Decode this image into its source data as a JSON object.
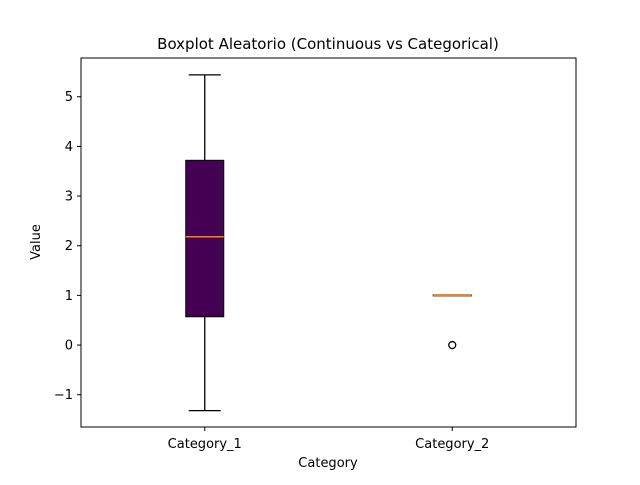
{
  "chart_data": {
    "type": "boxplot",
    "title": "Boxplot Aleatorio (Continuous vs Categorical)",
    "xlabel": "Category",
    "ylabel": "Value",
    "ylim": [
      -1.65,
      5.78
    ],
    "yticks": [
      -1,
      0,
      1,
      2,
      3,
      4,
      5
    ],
    "ytick_labels": [
      "−1",
      "0",
      "1",
      "2",
      "3",
      "4",
      "5"
    ],
    "categories": [
      "Category_1",
      "Category_2"
    ],
    "boxes": [
      {
        "category": "Category_1",
        "whisker_low": -1.32,
        "q1": 0.57,
        "median": 2.18,
        "q3": 3.72,
        "whisker_high": 5.44,
        "outliers": [],
        "fill_color": "#440154"
      },
      {
        "category": "Category_2",
        "whisker_low": 1.0,
        "q1": 1.0,
        "median": 1.0,
        "q3": 1.0,
        "whisker_high": 1.0,
        "outliers": [
          0.0
        ],
        "fill_color": "#440154"
      }
    ],
    "median_color": "#ff7f0e",
    "grid": false,
    "legend": "none"
  }
}
